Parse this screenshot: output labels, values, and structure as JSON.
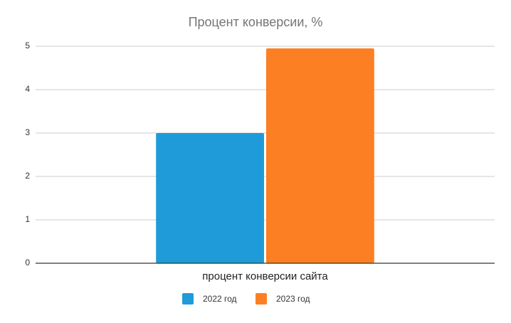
{
  "chart_data": {
    "type": "bar",
    "title": "Процент конверсии, %",
    "categories": [
      "процент конверсии сайта"
    ],
    "series": [
      {
        "name": "2022 год",
        "color": "#1f9bd9",
        "values": [
          3
        ]
      },
      {
        "name": "2023 год",
        "color": "#fd7f23",
        "values": [
          4.95
        ]
      }
    ],
    "ylim": [
      0,
      5
    ],
    "yticks": [
      0,
      1,
      2,
      3,
      4,
      5
    ],
    "grid": true,
    "legend": "bottom"
  }
}
